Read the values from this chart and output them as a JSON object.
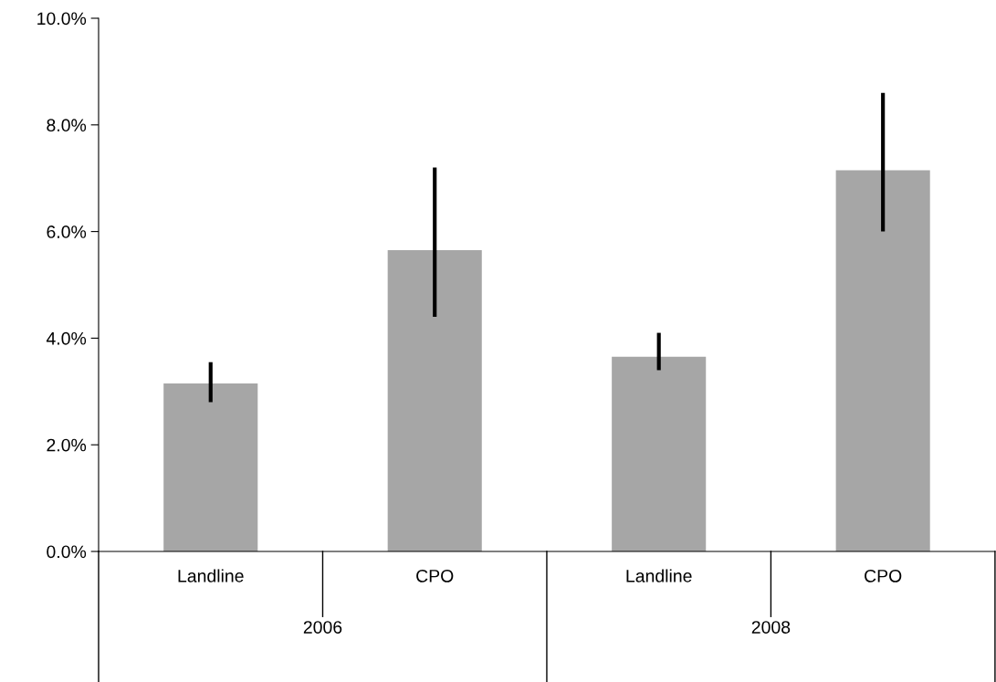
{
  "chart_data": {
    "type": "bar",
    "categories": [
      "Landline",
      "CPO",
      "Landline",
      "CPO"
    ],
    "values": [
      3.15,
      5.65,
      3.65,
      7.15
    ],
    "errors": [
      [
        2.8,
        3.55
      ],
      [
        4.4,
        7.2
      ],
      [
        3.4,
        4.1
      ],
      [
        6.0,
        8.6
      ]
    ],
    "color": "#a6a6a6",
    "ylim": [
      0,
      10
    ],
    "yticks": [
      {
        "value": 0,
        "label": "0.0%"
      },
      {
        "value": 2,
        "label": "2.0%"
      },
      {
        "value": 4,
        "label": "4.0%"
      },
      {
        "value": 6,
        "label": "6.0%"
      },
      {
        "value": 8,
        "label": "8.0%"
      },
      {
        "value": 10,
        "label": "10.0%"
      }
    ],
    "annotations": [
      "2006",
      "2008"
    ],
    "grid": false,
    "legend": false
  }
}
